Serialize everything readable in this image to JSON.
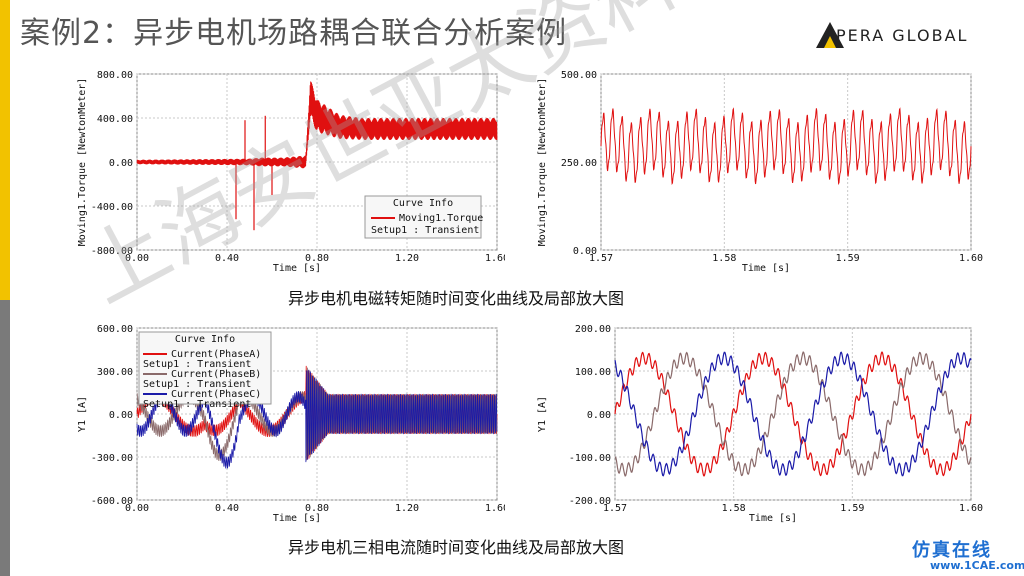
{
  "title": "案例2：异步电机场路耦合联合分析案例",
  "logo": {
    "text": "PERA GLOBAL"
  },
  "captions": {
    "torque": "异步电机电磁转矩随时间变化曲线及局部放大图",
    "current": "异步电机三相电流随时间变化曲线及局部放大图"
  },
  "watermark": {
    "center": "上海安世亚太资料分享",
    "site": "仿真在线",
    "url": "www.1CAE.com"
  },
  "colors": {
    "phaseA": "#e01010",
    "phaseB": "#8a6a6a",
    "phaseC": "#1a1aa8",
    "torque": "#e01010",
    "grid": "#c8c8c8"
  },
  "chart_data": [
    {
      "type": "line",
      "xlabel": "Time [s]",
      "ylabel": "Moving1.Torque [NewtonMeter]",
      "xlim": [
        0.0,
        1.6
      ],
      "ylim": [
        -800.0,
        800.0
      ],
      "xticks": [
        "0.00",
        "0.40",
        "0.80",
        "1.20",
        "1.60"
      ],
      "yticks": [
        "800.00",
        "400.00",
        "0.00",
        "-400.00",
        "-800.00"
      ],
      "legend": {
        "title": "Curve Info",
        "entries": [
          "Moving1.Torque",
          "Setup1 : Transient"
        ],
        "placement": "bottom-right"
      },
      "series": [
        {
          "name": "Moving1.Torque",
          "x": [
            0.0,
            0.5,
            0.55,
            0.65,
            0.75,
            0.77,
            0.8,
            0.9,
            1.0,
            1.2,
            1.4,
            1.6
          ],
          "y_center": [
            0,
            0,
            0,
            0,
            0,
            580,
            420,
            320,
            300,
            300,
            300,
            300
          ],
          "y_band": [
            20,
            30,
            40,
            40,
            60,
            180,
            150,
            110,
            100,
            100,
            100,
            100
          ]
        }
      ]
    },
    {
      "type": "line",
      "xlabel": "Time [s]",
      "ylabel": "Moving1.Torque [NewtonMeter]",
      "xlim": [
        1.57,
        1.6
      ],
      "ylim": [
        0.0,
        500.0
      ],
      "xticks": [
        "1.57",
        "1.58",
        "1.59",
        "1.60"
      ],
      "yticks": [
        "500.00",
        "250.00",
        "0.00"
      ],
      "series": [
        {
          "name": "Moving1.Torque",
          "mean": 295,
          "amplitude": 80,
          "cycles": 40
        }
      ]
    },
    {
      "type": "line",
      "xlabel": "Time [s]",
      "ylabel": "Y1 [A]",
      "xlim": [
        0.0,
        1.6
      ],
      "ylim": [
        -600.0,
        600.0
      ],
      "xticks": [
        "0.00",
        "0.40",
        "0.80",
        "1.20",
        "1.60"
      ],
      "yticks": [
        "600.00",
        "300.00",
        "0.00",
        "-300.00",
        "-600.00"
      ],
      "legend": {
        "title": "Curve Info",
        "entries": [
          "Current(PhaseA)",
          "Setup1 : Transient",
          "Current(PhaseB)",
          "Setup1 : Transient",
          "Current(PhaseC)",
          "Setup1 : Transient"
        ],
        "placement": "top-left"
      },
      "series": [
        {
          "name": "Current(PhaseA)",
          "steady_amplitude": 140
        },
        {
          "name": "Current(PhaseB)",
          "steady_amplitude": 140
        },
        {
          "name": "Current(PhaseC)",
          "steady_amplitude": 140
        }
      ]
    },
    {
      "type": "line",
      "xlabel": "Time [s]",
      "ylabel": "Y1 [A]",
      "xlim": [
        1.57,
        1.6
      ],
      "ylim": [
        -200.0,
        200.0
      ],
      "xticks": [
        "1.57",
        "1.58",
        "1.59",
        "1.60"
      ],
      "yticks": [
        "200.00",
        "100.00",
        "0.00",
        "-100.00",
        "-200.00"
      ],
      "series": [
        {
          "name": "Current(PhaseA)",
          "amplitude": 130,
          "cycles": 3,
          "phase_deg": 0
        },
        {
          "name": "Current(PhaseB)",
          "amplitude": 130,
          "cycles": 3,
          "phase_deg": 120
        },
        {
          "name": "Current(PhaseC)",
          "amplitude": 130,
          "cycles": 3,
          "phase_deg": 240
        }
      ]
    }
  ]
}
